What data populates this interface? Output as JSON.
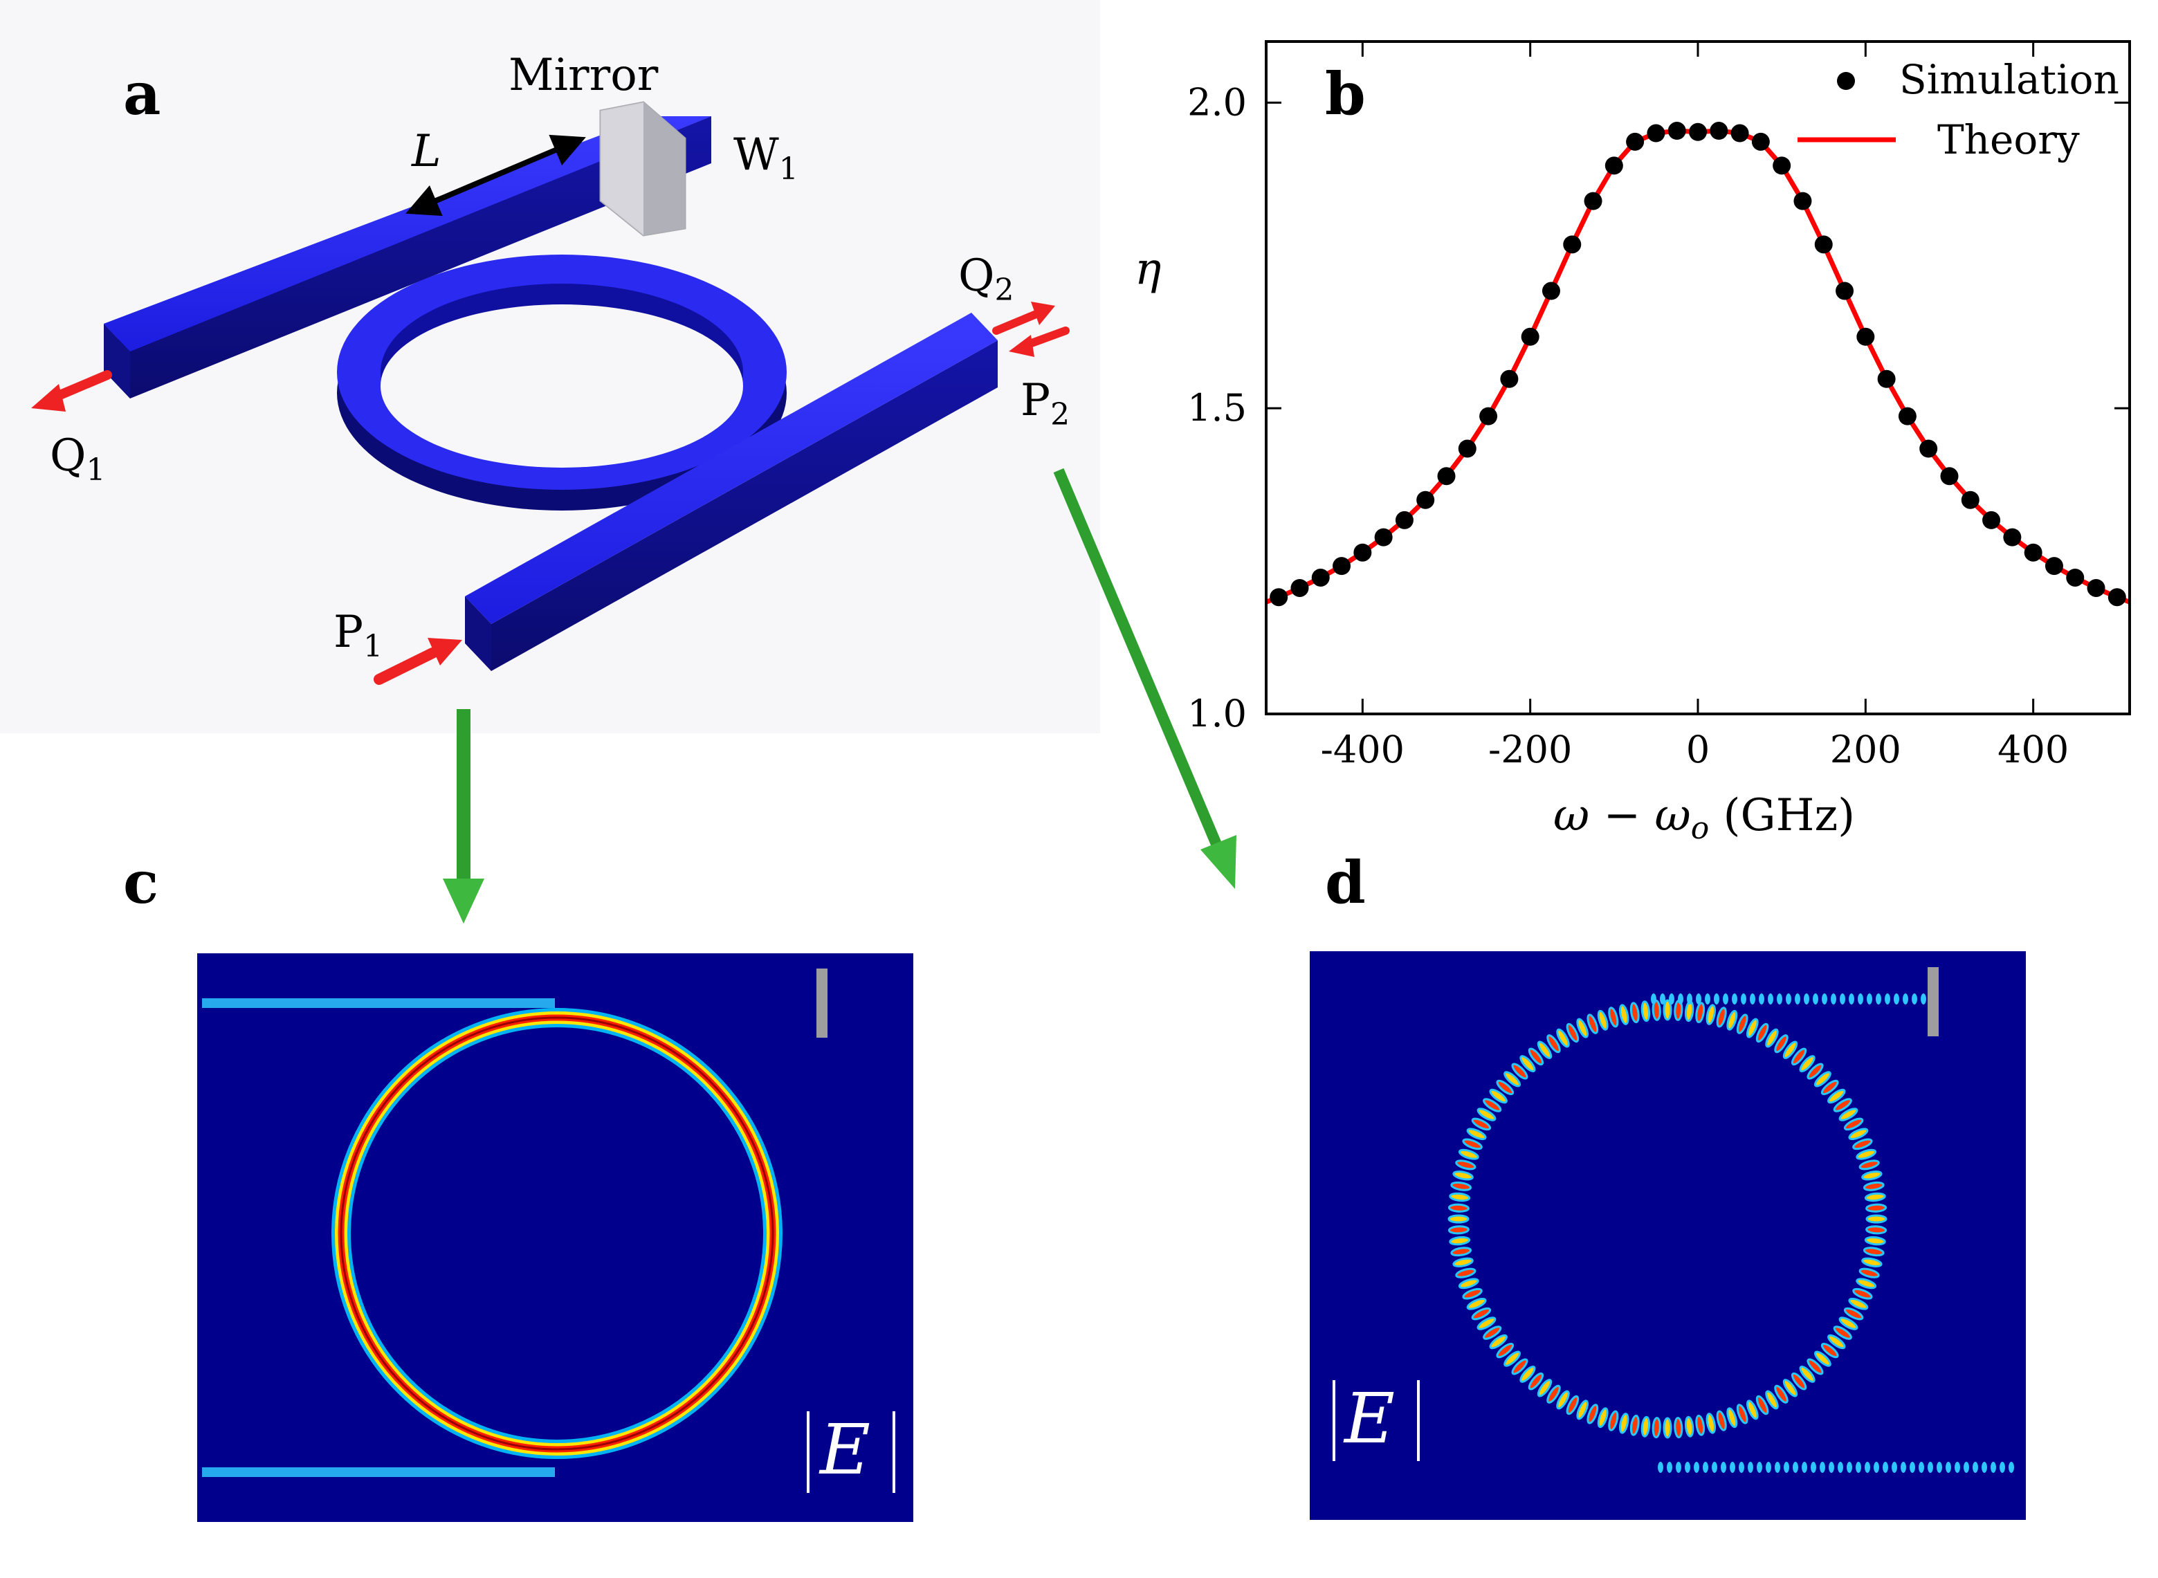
{
  "panels": {
    "a": "a",
    "b": "b",
    "c": "c",
    "d": "d"
  },
  "schematic": {
    "mirror": "Mirror",
    "length": "L",
    "w1": "W",
    "w1_sub": "1",
    "q1": "Q",
    "q1_sub": "1",
    "q2": "Q",
    "q2_sub": "2",
    "p1": "P",
    "p1_sub": "1",
    "p2": "P",
    "p2_sub": "2"
  },
  "field_maps": {
    "c": {
      "label": "|E|"
    },
    "d": {
      "label": "|E|"
    }
  },
  "chart_data": {
    "type": "line",
    "xlabel": "ω − ω",
    "xlabel_sub": "o",
    "xlabel_unit": " (GHz)",
    "ylabel": "η",
    "xlim": [
      -515,
      515
    ],
    "ylim": [
      1.0,
      2.1
    ],
    "xticks": [
      -400,
      -200,
      0,
      200,
      400
    ],
    "xtick_labels": [
      "-400",
      "-200",
      "0",
      "200",
      "400"
    ],
    "yticks": [
      1.0,
      1.5,
      2.0
    ],
    "ytick_labels": [
      "1.0",
      "1.5",
      "2.0"
    ],
    "legend_position": "top-right",
    "series": [
      {
        "name": "Simulation",
        "style": "markers",
        "color": "#000000",
        "x": [
          -500,
          -475,
          -450,
          -425,
          -400,
          -375,
          -350,
          -325,
          -300,
          -275,
          -250,
          -225,
          -200,
          -175,
          -150,
          -125,
          -100,
          -75,
          -50,
          -25,
          0,
          25,
          50,
          75,
          100,
          125,
          150,
          175,
          200,
          225,
          250,
          275,
          300,
          325,
          350,
          375,
          400,
          425,
          450,
          475,
          500
        ],
        "y": [
          1.191,
          1.206,
          1.223,
          1.242,
          1.264,
          1.289,
          1.317,
          1.35,
          1.389,
          1.434,
          1.487,
          1.548,
          1.617,
          1.692,
          1.768,
          1.839,
          1.897,
          1.936,
          1.95,
          1.954,
          1.952,
          1.954,
          1.95,
          1.936,
          1.897,
          1.839,
          1.768,
          1.692,
          1.617,
          1.548,
          1.487,
          1.434,
          1.389,
          1.35,
          1.317,
          1.289,
          1.264,
          1.242,
          1.223,
          1.206,
          1.191
        ]
      },
      {
        "name": "Theory",
        "style": "line",
        "color": "#ff0000",
        "x": [
          -515,
          -500,
          -475,
          -450,
          -425,
          -400,
          -375,
          -350,
          -325,
          -300,
          -275,
          -250,
          -225,
          -200,
          -175,
          -150,
          -125,
          -100,
          -75,
          -50,
          -25,
          0,
          25,
          50,
          75,
          100,
          125,
          150,
          175,
          200,
          225,
          250,
          275,
          300,
          325,
          350,
          375,
          400,
          425,
          450,
          475,
          500,
          515
        ],
        "y": [
          1.183,
          1.191,
          1.206,
          1.223,
          1.242,
          1.264,
          1.289,
          1.317,
          1.35,
          1.389,
          1.434,
          1.487,
          1.548,
          1.617,
          1.692,
          1.768,
          1.839,
          1.897,
          1.936,
          1.95,
          1.954,
          1.952,
          1.954,
          1.95,
          1.936,
          1.897,
          1.839,
          1.768,
          1.692,
          1.617,
          1.548,
          1.487,
          1.434,
          1.389,
          1.35,
          1.317,
          1.289,
          1.264,
          1.242,
          1.223,
          1.206,
          1.191,
          1.183
        ]
      }
    ]
  },
  "colors": {
    "waveguide": "#2222ee",
    "arrow_red": "#ee2222",
    "arrow_green": "#2e9e2e",
    "field_bg": "#00008c"
  }
}
